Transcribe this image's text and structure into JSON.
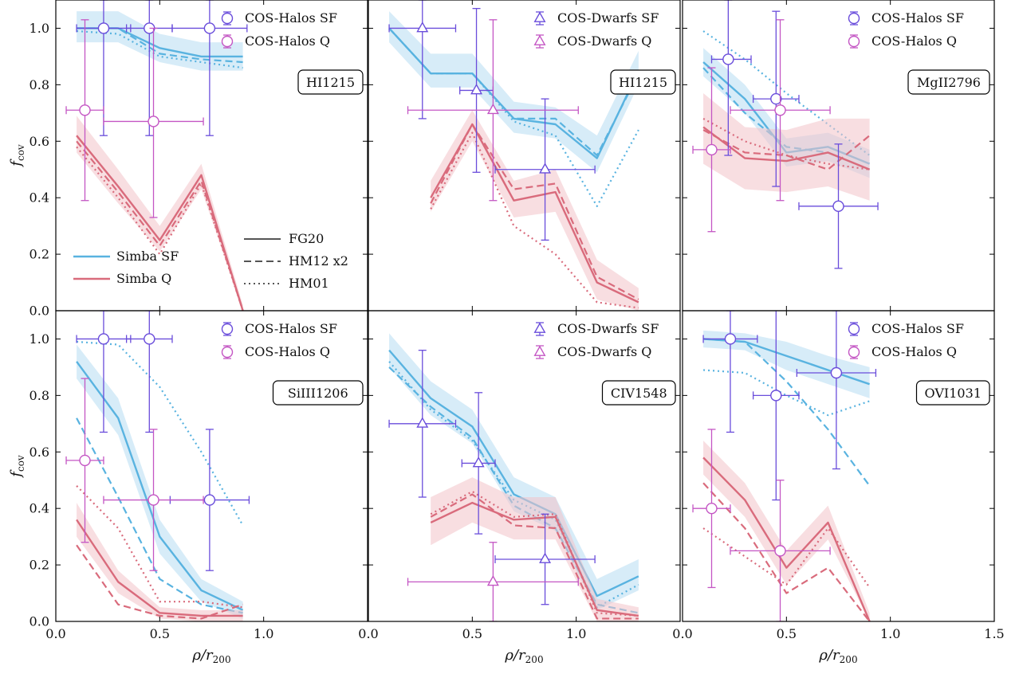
{
  "colors": {
    "sf": "#59b3e0",
    "sf_band": "#b7dcf2",
    "q": "#d96b7c",
    "q_band": "#f2c3c9",
    "obs_sf": "#6a4ddb",
    "obs_q": "#c456c4",
    "axis": "#000000",
    "legend_line": "#555555"
  },
  "chart_data": {
    "type": "line",
    "xlabel_main": "ρ/r",
    "xlabel_sub": "200",
    "ylabel_main": "f",
    "ylabel_sub": "cov",
    "xlim": [
      0.0,
      1.5
    ],
    "ylim": [
      0.0,
      1.1
    ],
    "xticks": [
      "0.0",
      "0.5",
      "1.0",
      "1.5"
    ],
    "yticks": [
      "0.0",
      "0.2",
      "0.4",
      "0.6",
      "0.8",
      "1.0"
    ],
    "model_legend": {
      "sf": "Simba SF",
      "q": "Simba Q"
    },
    "style_legend": {
      "solid": "FG20",
      "dashed": "HM12 x2",
      "dotted": "HM01"
    },
    "panels": [
      {
        "label": "HI1215",
        "obs_marker": "circle",
        "obs_legend": {
          "sf": "COS-Halos SF",
          "q": "COS-Halos Q"
        },
        "x": [
          0.1,
          0.3,
          0.5,
          0.7,
          0.9
        ],
        "sf": {
          "solid": [
            1.0,
            1.0,
            0.93,
            0.9,
            0.9
          ],
          "dashed": [
            1.0,
            1.0,
            0.91,
            0.89,
            0.88
          ],
          "dotted": [
            0.99,
            0.98,
            0.9,
            0.88,
            0.86
          ],
          "band_lo": [
            0.95,
            0.95,
            0.88,
            0.85,
            0.85
          ],
          "band_hi": [
            1.06,
            1.06,
            0.98,
            0.95,
            0.95
          ]
        },
        "q": {
          "solid": [
            0.62,
            0.44,
            0.25,
            0.48,
            0.0
          ],
          "dashed": [
            0.6,
            0.42,
            0.23,
            0.46,
            0.0
          ],
          "dotted": [
            0.58,
            0.4,
            0.2,
            0.45,
            0.0
          ],
          "band_lo": [
            0.56,
            0.38,
            0.21,
            0.43,
            0.0
          ],
          "band_hi": [
            0.69,
            0.5,
            0.3,
            0.52,
            0.02
          ]
        },
        "obs_sf": [
          {
            "x": 0.23,
            "y": 1.0,
            "xerr": [
              0.13,
              0.13
            ],
            "yerr": [
              0.38,
              0.1
            ]
          },
          {
            "x": 0.45,
            "y": 1.0,
            "xerr": [
              0.11,
              0.11
            ],
            "yerr": [
              0.38,
              0.1
            ]
          },
          {
            "x": 0.74,
            "y": 1.0,
            "xerr": [
              0.18,
              0.18
            ],
            "yerr": [
              0.38,
              0.1
            ]
          }
        ],
        "obs_q": [
          {
            "x": 0.14,
            "y": 0.71,
            "xerr": [
              0.09,
              0.09
            ],
            "yerr": [
              0.32,
              0.32
            ]
          },
          {
            "x": 0.47,
            "y": 0.67,
            "xerr": [
              0.24,
              0.24
            ],
            "yerr": [
              0.34,
              0.33
            ]
          }
        ]
      },
      {
        "label": "HI1215",
        "obs_marker": "triangle",
        "obs_legend": {
          "sf": "COS-Dwarfs SF",
          "q": "COS-Dwarfs Q"
        },
        "x": [
          0.1,
          0.3,
          0.5,
          0.7,
          0.9,
          1.1,
          1.3
        ],
        "sf": {
          "solid": [
            1.0,
            0.84,
            0.84,
            0.68,
            0.66,
            0.54,
            0.85
          ],
          "dashed": [
            1.0,
            0.84,
            0.84,
            0.68,
            0.68,
            0.55,
            0.84
          ],
          "dotted": [
            1.0,
            0.84,
            0.84,
            0.67,
            0.62,
            0.37,
            0.64
          ],
          "band_lo": [
            0.95,
            0.79,
            0.79,
            0.63,
            0.61,
            0.49,
            0.8
          ],
          "band_hi": [
            1.06,
            0.91,
            0.91,
            0.74,
            0.72,
            0.62,
            0.92
          ]
        },
        "q": {
          "solid": [
            0.4,
            0.66,
            0.39,
            0.42,
            0.1,
            0.03
          ],
          "dashed": [
            0.38,
            0.66,
            0.43,
            0.45,
            0.12,
            0.04
          ],
          "dotted": [
            0.36,
            0.63,
            0.3,
            0.2,
            0.03,
            0.01
          ],
          "band_lo": [
            0.35,
            0.6,
            0.33,
            0.35,
            0.04,
            0.0
          ],
          "band_hi": [
            0.46,
            0.71,
            0.46,
            0.5,
            0.18,
            0.08
          ]
        },
        "q_x": [
          0.3,
          0.5,
          0.7,
          0.9,
          1.1,
          1.3
        ],
        "obs_sf": [
          {
            "x": 0.26,
            "y": 1.0,
            "xerr": [
              0.16,
              0.16
            ],
            "yerr": [
              0.32,
              0.1
            ]
          },
          {
            "x": 0.52,
            "y": 0.78,
            "xerr": [
              0.08,
              0.08
            ],
            "yerr": [
              0.29,
              0.29
            ]
          },
          {
            "x": 0.85,
            "y": 0.5,
            "xerr": [
              0.24,
              0.24
            ],
            "yerr": [
              0.25,
              0.25
            ]
          }
        ],
        "obs_q": [
          {
            "x": 0.6,
            "y": 0.71,
            "xerr": [
              0.41,
              0.41
            ],
            "yerr": [
              0.32,
              0.32
            ]
          }
        ]
      },
      {
        "label": "MgII2796",
        "obs_marker": "circle",
        "obs_legend": {
          "sf": "COS-Halos SF",
          "q": "COS-Halos Q"
        },
        "x": [
          0.1,
          0.3,
          0.5,
          0.7,
          0.9
        ],
        "sf": {
          "solid": [
            0.88,
            0.75,
            0.56,
            0.58,
            0.52
          ],
          "dashed": [
            0.86,
            0.7,
            0.58,
            0.56,
            0.5
          ],
          "dotted": [
            0.99,
            0.89,
            0.77,
            0.66,
            0.55
          ],
          "band_lo": [
            0.83,
            0.7,
            0.51,
            0.53,
            0.47
          ],
          "band_hi": [
            0.93,
            0.8,
            0.61,
            0.63,
            0.57
          ]
        },
        "q": {
          "solid": [
            0.65,
            0.54,
            0.53,
            0.56,
            0.5
          ],
          "dashed": [
            0.64,
            0.56,
            0.55,
            0.5,
            0.62
          ],
          "dotted": [
            0.68,
            0.6,
            0.55,
            0.52,
            0.5
          ],
          "band_lo": [
            0.52,
            0.43,
            0.42,
            0.44,
            0.39
          ],
          "band_hi": [
            0.77,
            0.65,
            0.64,
            0.68,
            0.68
          ]
        },
        "obs_sf": [
          {
            "x": 0.22,
            "y": 0.89,
            "xerr": [
              0.08,
              0.11
            ],
            "yerr": [
              0.34,
              0.21
            ]
          },
          {
            "x": 0.45,
            "y": 0.75,
            "xerr": [
              0.11,
              0.11
            ],
            "yerr": [
              0.31,
              0.31
            ]
          },
          {
            "x": 0.75,
            "y": 0.37,
            "xerr": [
              0.19,
              0.19
            ],
            "yerr": [
              0.22,
              0.22
            ]
          }
        ],
        "obs_q": [
          {
            "x": 0.14,
            "y": 0.57,
            "xerr": [
              0.09,
              0.09
            ],
            "yerr": [
              0.29,
              0.29
            ]
          },
          {
            "x": 0.47,
            "y": 0.71,
            "xerr": [
              0.24,
              0.24
            ],
            "yerr": [
              0.32,
              0.32
            ]
          }
        ]
      },
      {
        "label": "SiIII1206",
        "obs_marker": "circle",
        "obs_legend": {
          "sf": "COS-Halos SF",
          "q": "COS-Halos Q"
        },
        "x": [
          0.1,
          0.3,
          0.5,
          0.7,
          0.9
        ],
        "sf": {
          "solid": [
            0.92,
            0.72,
            0.3,
            0.11,
            0.04
          ],
          "dashed": [
            0.72,
            0.44,
            0.15,
            0.06,
            0.03
          ],
          "dotted": [
            0.99,
            0.98,
            0.83,
            0.6,
            0.34
          ],
          "band_lo": [
            0.86,
            0.66,
            0.24,
            0.07,
            0.01
          ],
          "band_hi": [
            0.98,
            0.79,
            0.36,
            0.15,
            0.07
          ]
        },
        "q": {
          "solid": [
            0.36,
            0.14,
            0.03,
            0.02,
            0.02
          ],
          "dashed": [
            0.27,
            0.06,
            0.02,
            0.01,
            0.06
          ],
          "dotted": [
            0.48,
            0.33,
            0.07,
            0.07,
            0.05
          ],
          "band_lo": [
            0.3,
            0.1,
            0.01,
            0.0,
            0.0
          ],
          "band_hi": [
            0.42,
            0.18,
            0.05,
            0.04,
            0.04
          ]
        },
        "obs_sf": [
          {
            "x": 0.23,
            "y": 1.0,
            "xerr": [
              0.13,
              0.13
            ],
            "yerr": [
              0.33,
              0.1
            ]
          },
          {
            "x": 0.45,
            "y": 1.0,
            "xerr": [
              0.11,
              0.11
            ],
            "yerr": [
              0.33,
              0.1
            ]
          },
          {
            "x": 0.74,
            "y": 0.43,
            "xerr": [
              0.19,
              0.19
            ],
            "yerr": [
              0.25,
              0.25
            ]
          }
        ],
        "obs_q": [
          {
            "x": 0.14,
            "y": 0.57,
            "xerr": [
              0.09,
              0.09
            ],
            "yerr": [
              0.29,
              0.29
            ]
          },
          {
            "x": 0.47,
            "y": 0.43,
            "xerr": [
              0.24,
              0.24
            ],
            "yerr": [
              0.25,
              0.25
            ]
          }
        ]
      },
      {
        "label": "CIV1548",
        "obs_marker": "triangle",
        "obs_legend": {
          "sf": "COS-Dwarfs SF",
          "q": "COS-Dwarfs Q"
        },
        "x": [
          0.1,
          0.3,
          0.5,
          0.7,
          0.9,
          1.1,
          1.3
        ],
        "sf": {
          "solid": [
            0.96,
            0.79,
            0.69,
            0.45,
            0.38,
            0.09,
            0.16
          ],
          "dashed": [
            0.9,
            0.76,
            0.65,
            0.41,
            0.33,
            0.06,
            0.03
          ],
          "dotted": [
            0.92,
            0.75,
            0.64,
            0.43,
            0.36,
            0.05,
            0.13
          ],
          "band_lo": [
            0.9,
            0.73,
            0.63,
            0.39,
            0.32,
            0.04,
            0.11
          ],
          "band_hi": [
            1.02,
            0.85,
            0.75,
            0.51,
            0.44,
            0.15,
            0.22
          ]
        },
        "q": {
          "solid": [
            0.35,
            0.42,
            0.36,
            0.37,
            0.04,
            0.02
          ],
          "dashed": [
            0.37,
            0.45,
            0.34,
            0.33,
            0.01,
            0.01
          ],
          "dotted": [
            0.38,
            0.46,
            0.37,
            0.38,
            0.03,
            0.02
          ],
          "band_lo": [
            0.27,
            0.35,
            0.29,
            0.29,
            0.0,
            0.0
          ],
          "band_hi": [
            0.44,
            0.51,
            0.44,
            0.44,
            0.08,
            0.05
          ]
        },
        "q_x": [
          0.3,
          0.5,
          0.7,
          0.9,
          1.1,
          1.3
        ],
        "obs_sf": [
          {
            "x": 0.26,
            "y": 0.7,
            "xerr": [
              0.16,
              0.16
            ],
            "yerr": [
              0.26,
              0.26
            ]
          },
          {
            "x": 0.53,
            "y": 0.56,
            "xerr": [
              0.08,
              0.08
            ],
            "yerr": [
              0.25,
              0.25
            ]
          },
          {
            "x": 0.85,
            "y": 0.22,
            "xerr": [
              0.24,
              0.24
            ],
            "yerr": [
              0.16,
              0.16
            ]
          }
        ],
        "obs_q": [
          {
            "x": 0.6,
            "y": 0.14,
            "xerr": [
              0.41,
              0.41
            ],
            "yerr": [
              0.14,
              0.14
            ]
          }
        ]
      },
      {
        "label": "OVI1031",
        "obs_marker": "circle",
        "obs_legend": {
          "sf": "COS-Halos SF",
          "q": "COS-Halos Q"
        },
        "x": [
          0.1,
          0.3,
          0.5,
          0.7,
          0.9
        ],
        "sf": {
          "solid": [
            1.0,
            0.99,
            0.94,
            0.89,
            0.84
          ],
          "dashed": [
            1.0,
            0.99,
            0.85,
            0.68,
            0.48
          ],
          "dotted": [
            0.89,
            0.88,
            0.8,
            0.73,
            0.78
          ],
          "band_lo": [
            0.97,
            0.96,
            0.89,
            0.84,
            0.79
          ],
          "band_hi": [
            1.03,
            1.02,
            0.99,
            0.94,
            0.9
          ]
        },
        "q": {
          "solid": [
            0.58,
            0.43,
            0.19,
            0.35,
            0.0
          ],
          "dashed": [
            0.49,
            0.33,
            0.1,
            0.19,
            0.0
          ],
          "dotted": [
            0.33,
            0.23,
            0.13,
            0.33,
            0.12
          ],
          "band_lo": [
            0.52,
            0.37,
            0.13,
            0.29,
            0.0
          ],
          "band_hi": [
            0.64,
            0.49,
            0.25,
            0.41,
            0.03
          ]
        },
        "obs_sf": [
          {
            "x": 0.23,
            "y": 1.0,
            "xerr": [
              0.13,
              0.13
            ],
            "yerr": [
              0.33,
              0.1
            ]
          },
          {
            "x": 0.45,
            "y": 0.8,
            "xerr": [
              0.11,
              0.11
            ],
            "yerr": [
              0.37,
              0.37
            ]
          },
          {
            "x": 0.74,
            "y": 0.88,
            "xerr": [
              0.19,
              0.19
            ],
            "yerr": [
              0.34,
              0.22
            ]
          }
        ],
        "obs_q": [
          {
            "x": 0.14,
            "y": 0.4,
            "xerr": [
              0.09,
              0.09
            ],
            "yerr": [
              0.28,
              0.28
            ]
          },
          {
            "x": 0.47,
            "y": 0.25,
            "xerr": [
              0.24,
              0.24
            ],
            "yerr": [
              0.25,
              0.25
            ]
          }
        ]
      }
    ]
  }
}
